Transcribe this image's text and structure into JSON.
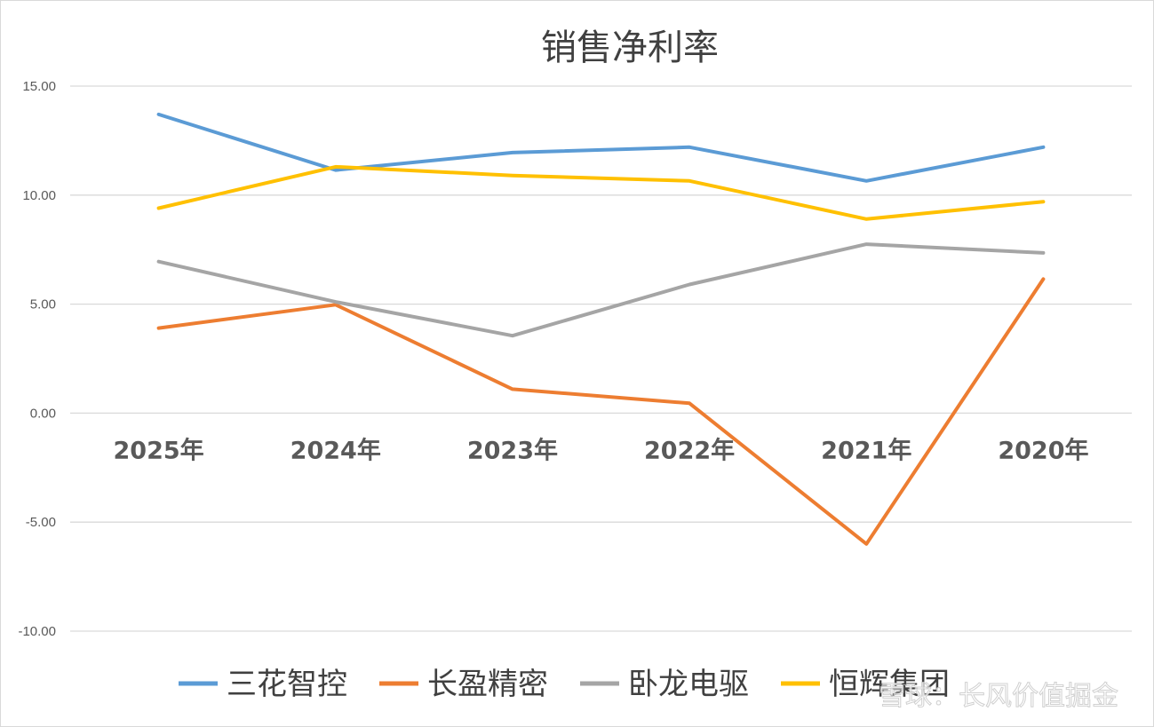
{
  "colors": {
    "background": "#ffffff",
    "grid": "#d9d9d9",
    "axis_text": "#595959",
    "title": "#404040"
  },
  "watermark": "雪球：长风价值掘金",
  "chart_data": {
    "type": "line",
    "title": "销售净利率",
    "xlabel": "",
    "ylabel": "",
    "ylim": [
      -10,
      15
    ],
    "ytick_values": [
      15,
      10,
      5,
      0,
      -5,
      -10
    ],
    "ytick_labels": [
      "15.00",
      "10.00",
      "5.00",
      "0.00",
      "-5.00",
      "-10.00"
    ],
    "grid": true,
    "legend_position": "bottom",
    "categories": [
      "2025年",
      "2024年",
      "2023年",
      "2022年",
      "2021年",
      "2020年"
    ],
    "series": [
      {
        "name": "三花智控",
        "color": "#5b9bd5",
        "values": [
          13.7,
          11.15,
          11.95,
          12.2,
          10.65,
          12.2
        ]
      },
      {
        "name": "长盈精密",
        "color": "#ed7d31",
        "values": [
          3.9,
          4.97,
          1.1,
          0.45,
          -6.0,
          6.15
        ]
      },
      {
        "name": "卧龙电驱",
        "color": "#a5a5a5",
        "values": [
          6.95,
          5.1,
          3.55,
          5.9,
          7.75,
          7.35
        ]
      },
      {
        "name": "恒辉集团",
        "color": "#ffc000",
        "values": [
          9.4,
          11.3,
          10.9,
          10.65,
          8.9,
          9.7
        ]
      }
    ]
  }
}
